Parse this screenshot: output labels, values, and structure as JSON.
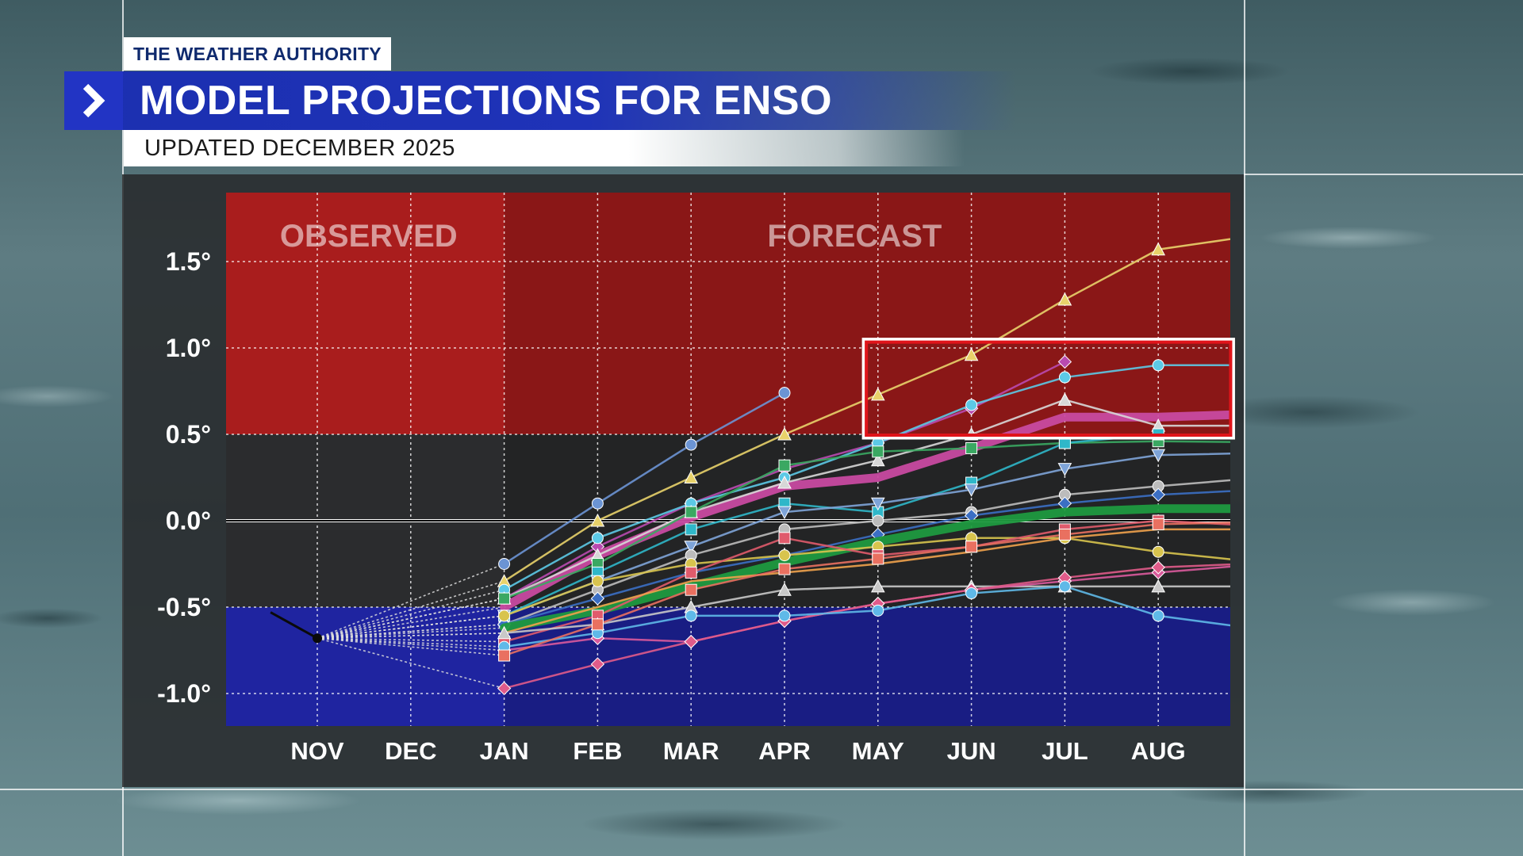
{
  "header": {
    "brand": "THE WEATHER AUTHORITY",
    "title": "MODEL PROJECTIONS FOR ENSO",
    "subtitle": "UPDATED DECEMBER 2025"
  },
  "icons": {
    "title_marker": "chevron-right-icon"
  },
  "colors": {
    "el_nino_zone": "#b01c1c",
    "la_nina_zone": "#1f24a6",
    "title_bar": "#1f33b8",
    "highlight_box": "#e0141a",
    "text": "#ffffff"
  },
  "chart_data": {
    "type": "line",
    "title": "",
    "xlabel": "",
    "ylabel": "",
    "categories": [
      "NOV",
      "DEC",
      "JAN",
      "FEB",
      "MAR",
      "APR",
      "MAY",
      "JUN",
      "JUL",
      "AUG"
    ],
    "y_ticks": [
      "1.5°",
      "1.0°",
      "0.5°",
      "0.0°",
      "-0.5°",
      "-1.0°"
    ],
    "y_tick_values": [
      1.5,
      1.0,
      0.5,
      0.0,
      -0.5,
      -1.0
    ],
    "ylim": [
      -1.2,
      1.9
    ],
    "zones": [
      {
        "label": "OBSERVED",
        "from": 0.4,
        "to": 2.0
      },
      {
        "label": "FORECAST",
        "from": 2.0,
        "to": 10.8
      }
    ],
    "threshold_bands": [
      {
        "name": "el-nino",
        "from": 0.5,
        "to": 1.9
      },
      {
        "name": "la-nina",
        "from": -1.2,
        "to": -0.5
      }
    ],
    "highlight_box": {
      "x_from": 5.85,
      "x_to": 9.8,
      "y_from": 0.5,
      "y_to": 1.02
    },
    "grid": true,
    "observed": {
      "x": [
        -0.5,
        0
      ],
      "y": [
        -0.53,
        -0.68
      ]
    },
    "series": [
      {
        "color": "#6b94d4",
        "marker": "circle",
        "x": [
          0,
          2,
          3,
          4,
          5
        ],
        "y": [
          -0.68,
          -0.25,
          0.1,
          0.44,
          0.74
        ]
      },
      {
        "color": "#e8d26a",
        "marker": "triangle",
        "x": [
          0,
          2,
          3,
          4,
          5,
          6,
          7,
          8,
          9,
          10.8
        ],
        "y": [
          -0.68,
          -0.35,
          0.0,
          0.25,
          0.5,
          0.73,
          0.96,
          1.28,
          1.57,
          1.71
        ]
      },
      {
        "color": "#b94ab0",
        "marker": "diamond",
        "x": [
          0,
          2,
          3,
          4,
          5,
          6,
          7,
          8
        ],
        "y": [
          -0.68,
          -0.45,
          -0.15,
          0.1,
          0.3,
          0.45,
          0.65,
          0.92
        ]
      },
      {
        "color": "#5cc9e6",
        "marker": "circle",
        "x": [
          0,
          2,
          3,
          4,
          5,
          6,
          7,
          8,
          9,
          10.8
        ],
        "y": [
          -0.68,
          -0.4,
          -0.1,
          0.1,
          0.25,
          0.45,
          0.67,
          0.83,
          0.9,
          0.9
        ]
      },
      {
        "color": "#c84aa0",
        "marker": "none",
        "x": [
          0,
          2,
          3,
          4,
          5,
          6,
          7,
          8,
          9,
          10.8
        ],
        "y": [
          -0.68,
          -0.5,
          -0.2,
          0.02,
          0.2,
          0.25,
          0.42,
          0.6,
          0.6,
          0.63
        ]
      },
      {
        "color": "#d7d7d7",
        "marker": "triangle",
        "x": [
          0,
          2,
          3,
          4,
          5,
          6,
          7,
          8,
          9,
          10.8
        ],
        "y": [
          -0.68,
          -0.45,
          -0.2,
          0.05,
          0.22,
          0.35,
          0.5,
          0.7,
          0.55,
          0.55
        ]
      },
      {
        "color": "#3aa862",
        "marker": "square",
        "x": [
          0,
          2,
          3,
          4,
          5,
          6,
          7,
          8,
          9,
          10.8
        ],
        "y": [
          -0.68,
          -0.45,
          -0.25,
          0.05,
          0.32,
          0.4,
          0.42,
          0.45,
          0.46,
          0.45
        ]
      },
      {
        "color": "#2fb7c9",
        "marker": "square",
        "x": [
          0,
          2,
          3,
          4,
          5,
          6,
          7,
          8,
          9,
          10.8
        ],
        "y": [
          -0.68,
          -0.55,
          -0.3,
          -0.05,
          0.1,
          0.05,
          0.22,
          0.45,
          0.5,
          0.45
        ]
      },
      {
        "color": "#7ea4d8",
        "marker": "triangle-down",
        "x": [
          0,
          2,
          3,
          4,
          5,
          6,
          7,
          8,
          9,
          10.8
        ],
        "y": [
          -0.68,
          -0.55,
          -0.35,
          -0.15,
          0.05,
          0.1,
          0.18,
          0.3,
          0.38,
          0.4
        ]
      },
      {
        "color": "#bcbcbc",
        "marker": "circle",
        "x": [
          0,
          2,
          3,
          4,
          5,
          6,
          7,
          8,
          9,
          10.8
        ],
        "y": [
          -0.68,
          -0.6,
          -0.4,
          -0.2,
          -0.05,
          0.0,
          0.05,
          0.15,
          0.2,
          0.28
        ]
      },
      {
        "color": "#3b6fc4",
        "marker": "diamond",
        "x": [
          0,
          2,
          3,
          4,
          5,
          6,
          7,
          8,
          9,
          10.8
        ],
        "y": [
          -0.68,
          -0.6,
          -0.45,
          -0.3,
          -0.2,
          -0.08,
          0.03,
          0.1,
          0.15,
          0.2
        ]
      },
      {
        "color": "#1f9a3f",
        "marker": "none",
        "x": [
          0,
          2,
          3,
          4,
          5,
          6,
          7,
          8,
          9,
          10.8
        ],
        "y": [
          -0.68,
          -0.62,
          -0.52,
          -0.38,
          -0.24,
          -0.12,
          -0.02,
          0.05,
          0.07,
          0.07
        ]
      },
      {
        "color": "#d8c44e",
        "marker": "circle",
        "x": [
          0,
          2,
          3,
          4,
          5,
          6,
          7,
          8,
          9,
          10.8
        ],
        "y": [
          -0.68,
          -0.55,
          -0.35,
          -0.25,
          -0.2,
          -0.15,
          -0.1,
          -0.1,
          -0.18,
          -0.28
        ]
      },
      {
        "color": "#e05b6c",
        "marker": "square",
        "x": [
          0,
          2,
          3,
          4,
          5,
          6,
          7,
          8,
          9,
          10.8
        ],
        "y": [
          -0.68,
          -0.7,
          -0.55,
          -0.3,
          -0.1,
          -0.2,
          -0.15,
          -0.05,
          0.0,
          -0.05
        ]
      },
      {
        "color": "#f0a24c",
        "marker": "none",
        "x": [
          0,
          2,
          3,
          4,
          5,
          6,
          7,
          8,
          9,
          10.8
        ],
        "y": [
          -0.68,
          -0.65,
          -0.5,
          -0.35,
          -0.3,
          -0.25,
          -0.18,
          -0.1,
          -0.05,
          -0.05
        ]
      },
      {
        "color": "#c8c8c8",
        "marker": "triangle",
        "x": [
          0,
          2,
          3,
          4,
          5,
          6,
          7,
          8,
          9,
          10.8
        ],
        "y": [
          -0.68,
          -0.65,
          -0.6,
          -0.5,
          -0.4,
          -0.38,
          -0.38,
          -0.38,
          -0.38,
          -0.38
        ]
      },
      {
        "color": "#d95a9c",
        "marker": "diamond",
        "x": [
          0,
          2,
          3,
          4,
          5,
          6,
          7,
          8,
          9,
          10.8
        ],
        "y": [
          -0.68,
          -0.75,
          -0.68,
          -0.7,
          -0.58,
          -0.48,
          -0.4,
          -0.35,
          -0.3,
          -0.22
        ]
      },
      {
        "color": "#e05b8a",
        "marker": "diamond",
        "x": [
          0,
          2,
          3,
          4,
          5,
          6,
          7,
          8,
          9,
          10.8
        ],
        "y": [
          -0.68,
          -0.97,
          -0.83,
          -0.7,
          -0.58,
          -0.48,
          -0.4,
          -0.33,
          -0.27,
          -0.23
        ]
      },
      {
        "color": "#5fb9e8",
        "marker": "circle",
        "x": [
          0,
          2,
          3,
          4,
          5,
          6,
          7,
          8,
          9,
          10.8
        ],
        "y": [
          -0.68,
          -0.73,
          -0.65,
          -0.55,
          -0.55,
          -0.52,
          -0.42,
          -0.38,
          -0.55,
          -0.68
        ]
      },
      {
        "color": "#e97060",
        "marker": "square",
        "x": [
          0,
          2,
          3,
          4,
          5,
          6,
          7,
          8,
          9,
          10.8
        ],
        "y": [
          -0.68,
          -0.78,
          -0.6,
          -0.4,
          -0.28,
          -0.22,
          -0.15,
          -0.08,
          -0.02,
          0.0
        ]
      }
    ]
  }
}
